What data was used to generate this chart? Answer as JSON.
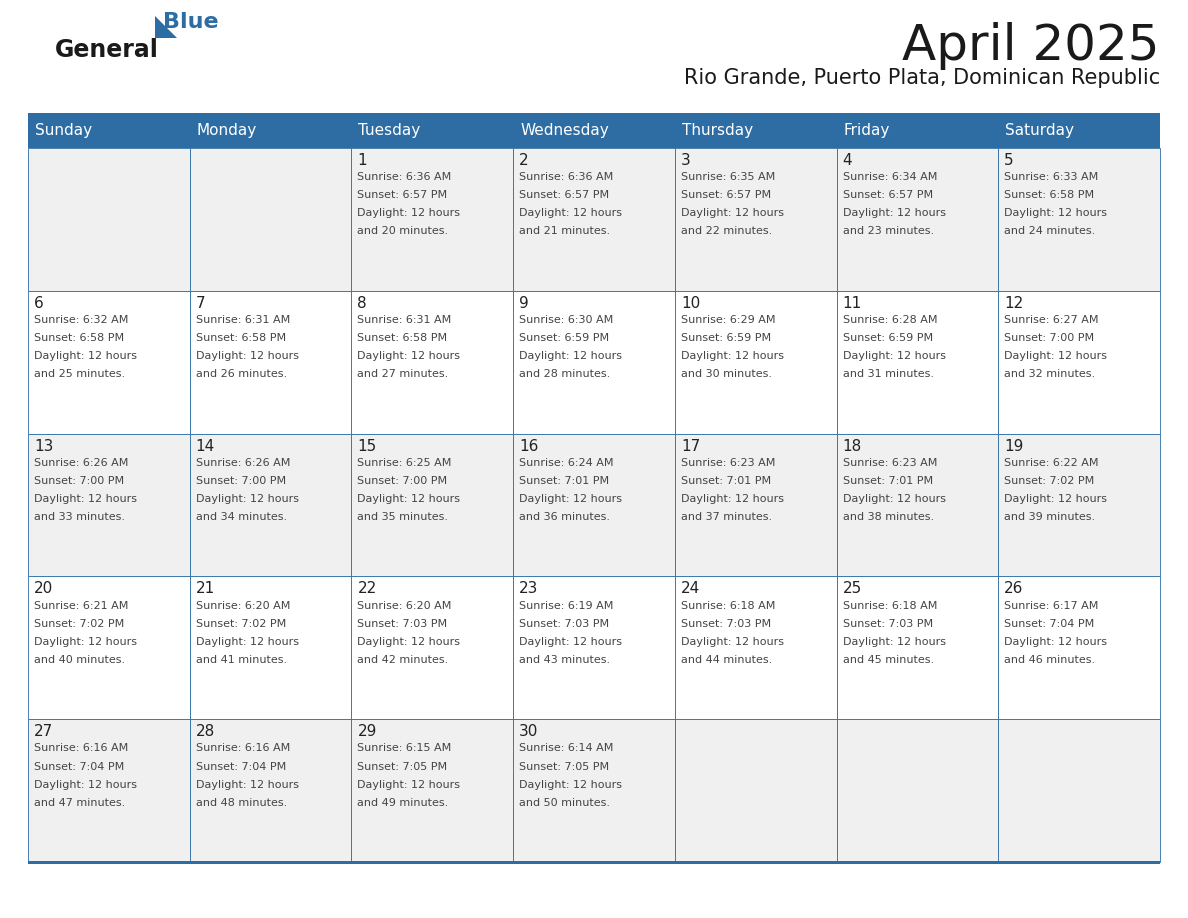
{
  "title": "April 2025",
  "subtitle": "Rio Grande, Puerto Plata, Dominican Republic",
  "header_color": "#2E6DA4",
  "header_text_color": "#FFFFFF",
  "day_names": [
    "Sunday",
    "Monday",
    "Tuesday",
    "Wednesday",
    "Thursday",
    "Friday",
    "Saturday"
  ],
  "bg_color": "#FFFFFF",
  "cell_bg_even": "#F0F0F0",
  "cell_bg_odd": "#FFFFFF",
  "border_color": "#2E6DA4",
  "text_color": "#444444",
  "number_color": "#222222",
  "logo_general_color": "#1a1a1a",
  "logo_blue_color": "#2E6DA4",
  "title_fontsize": 36,
  "subtitle_fontsize": 15,
  "header_fontsize": 11,
  "day_number_fontsize": 11,
  "cell_text_fontsize": 8,
  "weeks": [
    [
      {
        "day": 0,
        "sunrise": "",
        "sunset": "",
        "daylight": ""
      },
      {
        "day": 0,
        "sunrise": "",
        "sunset": "",
        "daylight": ""
      },
      {
        "day": 1,
        "sunrise": "6:36 AM",
        "sunset": "6:57 PM",
        "daylight_hours": "12 hours",
        "daylight_mins": "and 20 minutes."
      },
      {
        "day": 2,
        "sunrise": "6:36 AM",
        "sunset": "6:57 PM",
        "daylight_hours": "12 hours",
        "daylight_mins": "and 21 minutes."
      },
      {
        "day": 3,
        "sunrise": "6:35 AM",
        "sunset": "6:57 PM",
        "daylight_hours": "12 hours",
        "daylight_mins": "and 22 minutes."
      },
      {
        "day": 4,
        "sunrise": "6:34 AM",
        "sunset": "6:57 PM",
        "daylight_hours": "12 hours",
        "daylight_mins": "and 23 minutes."
      },
      {
        "day": 5,
        "sunrise": "6:33 AM",
        "sunset": "6:58 PM",
        "daylight_hours": "12 hours",
        "daylight_mins": "and 24 minutes."
      }
    ],
    [
      {
        "day": 6,
        "sunrise": "6:32 AM",
        "sunset": "6:58 PM",
        "daylight_hours": "12 hours",
        "daylight_mins": "and 25 minutes."
      },
      {
        "day": 7,
        "sunrise": "6:31 AM",
        "sunset": "6:58 PM",
        "daylight_hours": "12 hours",
        "daylight_mins": "and 26 minutes."
      },
      {
        "day": 8,
        "sunrise": "6:31 AM",
        "sunset": "6:58 PM",
        "daylight_hours": "12 hours",
        "daylight_mins": "and 27 minutes."
      },
      {
        "day": 9,
        "sunrise": "6:30 AM",
        "sunset": "6:59 PM",
        "daylight_hours": "12 hours",
        "daylight_mins": "and 28 minutes."
      },
      {
        "day": 10,
        "sunrise": "6:29 AM",
        "sunset": "6:59 PM",
        "daylight_hours": "12 hours",
        "daylight_mins": "and 30 minutes."
      },
      {
        "day": 11,
        "sunrise": "6:28 AM",
        "sunset": "6:59 PM",
        "daylight_hours": "12 hours",
        "daylight_mins": "and 31 minutes."
      },
      {
        "day": 12,
        "sunrise": "6:27 AM",
        "sunset": "7:00 PM",
        "daylight_hours": "12 hours",
        "daylight_mins": "and 32 minutes."
      }
    ],
    [
      {
        "day": 13,
        "sunrise": "6:26 AM",
        "sunset": "7:00 PM",
        "daylight_hours": "12 hours",
        "daylight_mins": "and 33 minutes."
      },
      {
        "day": 14,
        "sunrise": "6:26 AM",
        "sunset": "7:00 PM",
        "daylight_hours": "12 hours",
        "daylight_mins": "and 34 minutes."
      },
      {
        "day": 15,
        "sunrise": "6:25 AM",
        "sunset": "7:00 PM",
        "daylight_hours": "12 hours",
        "daylight_mins": "and 35 minutes."
      },
      {
        "day": 16,
        "sunrise": "6:24 AM",
        "sunset": "7:01 PM",
        "daylight_hours": "12 hours",
        "daylight_mins": "and 36 minutes."
      },
      {
        "day": 17,
        "sunrise": "6:23 AM",
        "sunset": "7:01 PM",
        "daylight_hours": "12 hours",
        "daylight_mins": "and 37 minutes."
      },
      {
        "day": 18,
        "sunrise": "6:23 AM",
        "sunset": "7:01 PM",
        "daylight_hours": "12 hours",
        "daylight_mins": "and 38 minutes."
      },
      {
        "day": 19,
        "sunrise": "6:22 AM",
        "sunset": "7:02 PM",
        "daylight_hours": "12 hours",
        "daylight_mins": "and 39 minutes."
      }
    ],
    [
      {
        "day": 20,
        "sunrise": "6:21 AM",
        "sunset": "7:02 PM",
        "daylight_hours": "12 hours",
        "daylight_mins": "and 40 minutes."
      },
      {
        "day": 21,
        "sunrise": "6:20 AM",
        "sunset": "7:02 PM",
        "daylight_hours": "12 hours",
        "daylight_mins": "and 41 minutes."
      },
      {
        "day": 22,
        "sunrise": "6:20 AM",
        "sunset": "7:03 PM",
        "daylight_hours": "12 hours",
        "daylight_mins": "and 42 minutes."
      },
      {
        "day": 23,
        "sunrise": "6:19 AM",
        "sunset": "7:03 PM",
        "daylight_hours": "12 hours",
        "daylight_mins": "and 43 minutes."
      },
      {
        "day": 24,
        "sunrise": "6:18 AM",
        "sunset": "7:03 PM",
        "daylight_hours": "12 hours",
        "daylight_mins": "and 44 minutes."
      },
      {
        "day": 25,
        "sunrise": "6:18 AM",
        "sunset": "7:03 PM",
        "daylight_hours": "12 hours",
        "daylight_mins": "and 45 minutes."
      },
      {
        "day": 26,
        "sunrise": "6:17 AM",
        "sunset": "7:04 PM",
        "daylight_hours": "12 hours",
        "daylight_mins": "and 46 minutes."
      }
    ],
    [
      {
        "day": 27,
        "sunrise": "6:16 AM",
        "sunset": "7:04 PM",
        "daylight_hours": "12 hours",
        "daylight_mins": "and 47 minutes."
      },
      {
        "day": 28,
        "sunrise": "6:16 AM",
        "sunset": "7:04 PM",
        "daylight_hours": "12 hours",
        "daylight_mins": "and 48 minutes."
      },
      {
        "day": 29,
        "sunrise": "6:15 AM",
        "sunset": "7:05 PM",
        "daylight_hours": "12 hours",
        "daylight_mins": "and 49 minutes."
      },
      {
        "day": 30,
        "sunrise": "6:14 AM",
        "sunset": "7:05 PM",
        "daylight_hours": "12 hours",
        "daylight_mins": "and 50 minutes."
      },
      {
        "day": 0,
        "sunrise": "",
        "sunset": "",
        "daylight_hours": "",
        "daylight_mins": ""
      },
      {
        "day": 0,
        "sunrise": "",
        "sunset": "",
        "daylight_hours": "",
        "daylight_mins": ""
      },
      {
        "day": 0,
        "sunrise": "",
        "sunset": "",
        "daylight_hours": "",
        "daylight_mins": ""
      }
    ]
  ]
}
